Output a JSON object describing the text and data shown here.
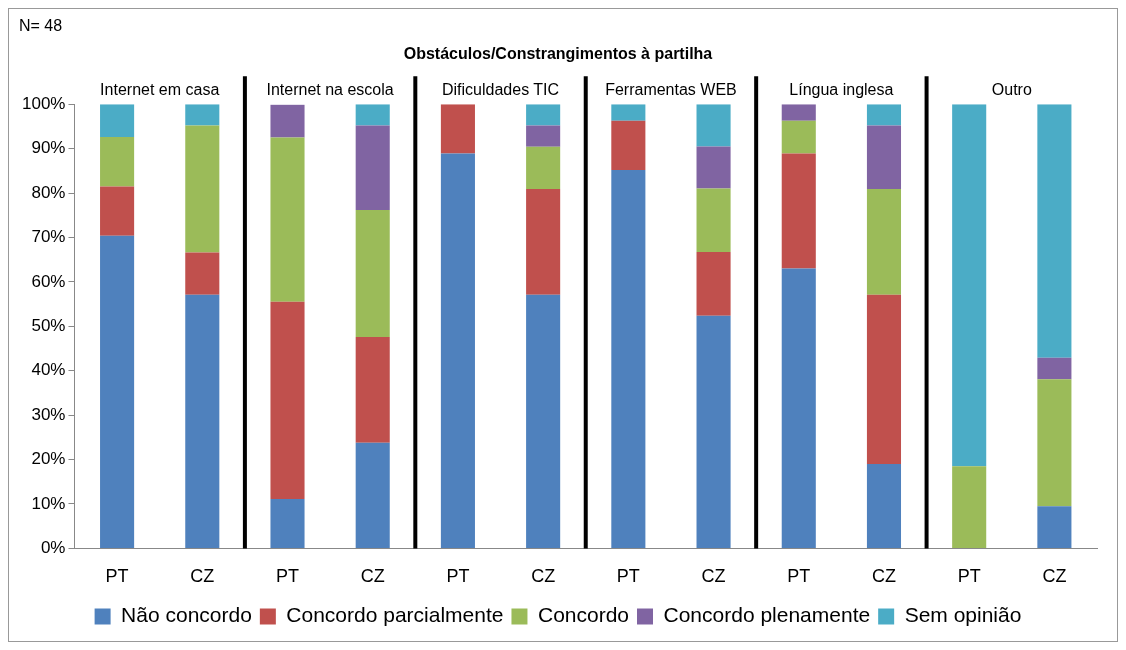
{
  "chart_data": {
    "type": "bar",
    "title": "Obstáculos/Constrangimentos à partilha",
    "stacked": true,
    "categories": [
      "PT",
      "CZ",
      "PT",
      "CZ",
      "PT",
      "CZ",
      "PT",
      "CZ",
      "PT",
      "CZ",
      "PT",
      "CZ"
    ],
    "series": [
      {
        "name": "Não concordo",
        "color": "#4f81bd",
        "values": [
          70.4,
          57.1,
          11.1,
          23.8,
          88.9,
          57.1,
          85.2,
          52.4,
          63.0,
          19.0,
          0,
          9.5
        ]
      },
      {
        "name": "Concordo parcialmente",
        "color": "#c0504d",
        "values": [
          11.1,
          9.5,
          44.4,
          23.8,
          11.1,
          23.8,
          11.1,
          14.3,
          25.9,
          38.1,
          0,
          0
        ]
      },
      {
        "name": "Concordo",
        "color": "#9bbb59",
        "values": [
          11.1,
          28.6,
          37.0,
          28.6,
          0,
          9.5,
          0,
          14.3,
          7.4,
          23.8,
          18.5,
          28.6
        ]
      },
      {
        "name": "Concordo plenamente",
        "color": "#8064a2",
        "values": [
          0,
          0,
          7.4,
          19.0,
          0,
          4.8,
          0,
          9.5,
          3.7,
          14.3,
          0,
          4.8
        ]
      },
      {
        "name": "Sem opinião",
        "color": "#4bacc6",
        "values": [
          7.4,
          4.8,
          0,
          4.8,
          0,
          4.8,
          3.7,
          9.5,
          0,
          4.8,
          81.5,
          57.1
        ]
      }
    ],
    "ylim": [
      0,
      100
    ],
    "yticks": [
      {
        "value": 0,
        "label": "0%"
      },
      {
        "value": 10,
        "label": "10%"
      },
      {
        "value": 20,
        "label": "20%"
      },
      {
        "value": 30,
        "label": "30%"
      },
      {
        "value": 40,
        "label": "40%"
      },
      {
        "value": 50,
        "label": "50%"
      },
      {
        "value": 60,
        "label": "60%"
      },
      {
        "value": 70,
        "label": "70%"
      },
      {
        "value": 80,
        "label": "80%"
      },
      {
        "value": 90,
        "label": "90%"
      },
      {
        "value": 100,
        "label": "100%"
      }
    ],
    "grid": false,
    "legend": "bottom",
    "annotations": [
      "N= 48",
      "Internet em casa",
      "Internet na escola",
      "Dificuldades TIC",
      "Ferramentas WEB",
      "Língua inglesa",
      "Outro"
    ]
  }
}
